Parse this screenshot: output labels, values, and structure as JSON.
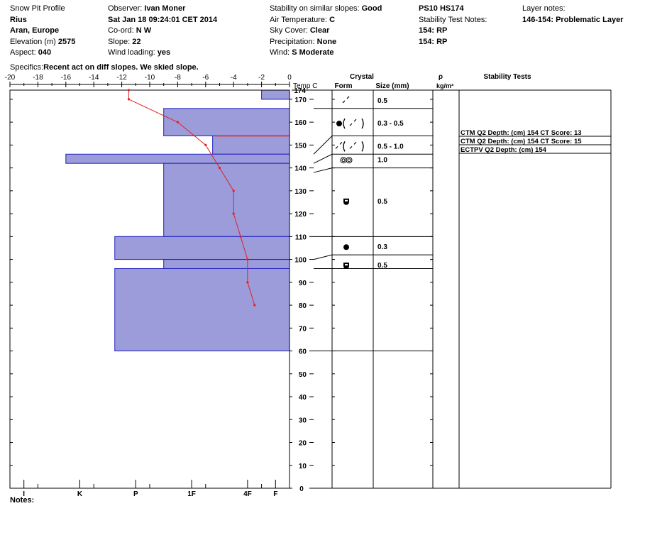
{
  "header": {
    "col1": [
      {
        "label": "Snow Pit Profile",
        "value": ""
      },
      {
        "label": "",
        "value": "Rius"
      },
      {
        "label": "",
        "value": "Aran, Europe"
      },
      {
        "label": "Elevation (m) ",
        "value": "2575"
      },
      {
        "label": "Aspect:  ",
        "value": "040"
      }
    ],
    "col2": [
      {
        "label": "Observer:  ",
        "value": "Ivan Moner"
      },
      {
        "label": "",
        "value": "Sat Jan 18 09:24:01 CET 2014"
      },
      {
        "label": "Co-ord:  ",
        "value": "N  W"
      },
      {
        "label": "Slope:  ",
        "value": "22"
      },
      {
        "label": "Wind loading:  ",
        "value": "yes"
      }
    ],
    "col3": [
      {
        "label": "Stability on similar slopes:  ",
        "value": "Good"
      },
      {
        "label": "Air Temperature:  ",
        "value": "C"
      },
      {
        "label": "Sky Cover:  ",
        "value": "Clear"
      },
      {
        "label": "Precipitation:  ",
        "value": "None"
      },
      {
        "label": "Wind:  ",
        "value": "S Moderate"
      }
    ],
    "col4": [
      {
        "label": "",
        "value": "PS10 HS174"
      },
      {
        "label": "Stability Test Notes:",
        "value": ""
      },
      {
        "label": "",
        "value": "154: RP"
      },
      {
        "label": "",
        "value": "154: RP"
      }
    ],
    "col5": [
      {
        "label": "Layer notes:",
        "value": ""
      },
      {
        "label": "",
        "value": "146-154: Problematic Layer"
      }
    ],
    "specifics_label": "Specifics:",
    "specifics_value": "Recent act on diff slopes. We skied slope."
  },
  "column_headers": {
    "temp": "Temp C",
    "crystal": "Crystal",
    "form": "Form",
    "size": "Size (mm)",
    "rho": "ρ",
    "rho_unit": "kg/m³",
    "stability": "Stability Tests"
  },
  "notes_label": "Notes:",
  "chart_data": {
    "type": "snow-profile",
    "colors": {
      "hardness_fill": "#9c9cdb",
      "hardness_edge": "#2020c0",
      "temp_line": "#e02020",
      "problem_line": "#e02020"
    },
    "temp_axis": {
      "min": -20,
      "max": 0,
      "ticks": [
        -20,
        -18,
        -16,
        -14,
        -12,
        -10,
        -8,
        -6,
        -4,
        -2,
        0
      ]
    },
    "hardness_axis": {
      "labels": [
        "I",
        "K",
        "P",
        "1F",
        "4F",
        "F"
      ],
      "label_temps": [
        -19,
        -15,
        -11,
        -7,
        -3,
        -1
      ]
    },
    "height_axis": {
      "min": 0,
      "max": 174,
      "ticks": [
        0,
        10,
        20,
        30,
        40,
        50,
        60,
        70,
        80,
        90,
        100,
        110,
        120,
        130,
        140,
        150,
        160,
        170
      ],
      "top_label": "174"
    },
    "hardness_layers": [
      {
        "bottom": 170,
        "top": 174,
        "hardness_temp": -2
      },
      {
        "bottom": 154,
        "top": 166,
        "hardness_temp": -9
      },
      {
        "bottom": 146,
        "top": 154,
        "hardness_temp": -5.5
      },
      {
        "bottom": 142,
        "top": 146,
        "hardness_temp": -16
      },
      {
        "bottom": 110,
        "top": 142,
        "hardness_temp": -9
      },
      {
        "bottom": 100,
        "top": 110,
        "hardness_temp": -12.5
      },
      {
        "bottom": 96,
        "top": 100,
        "hardness_temp": -9
      },
      {
        "bottom": 60,
        "top": 96,
        "hardness_temp": -12.5
      }
    ],
    "problem_layer_height": 154,
    "temperature_profile": [
      {
        "height": 174,
        "temp": -11.5
      },
      {
        "height": 170,
        "temp": -11.5
      },
      {
        "height": 160,
        "temp": -8
      },
      {
        "height": 150,
        "temp": -6
      },
      {
        "height": 140,
        "temp": -5
      },
      {
        "height": 130,
        "temp": -4
      },
      {
        "height": 120,
        "temp": -4
      },
      {
        "height": 110,
        "temp": -3.5
      },
      {
        "height": 100,
        "temp": -3
      },
      {
        "height": 90,
        "temp": -3
      },
      {
        "height": 80,
        "temp": -2.5
      }
    ],
    "layer_boundaries": [
      {
        "left": 166,
        "right": 166
      },
      {
        "left": 146,
        "right": 154
      },
      {
        "left": 142,
        "right": 146
      },
      {
        "left": 138,
        "right": 140
      },
      {
        "left": 110,
        "right": 110
      },
      {
        "left": 100,
        "right": 102
      },
      {
        "left": 96,
        "right": 96
      },
      {
        "left": 60,
        "right": 60
      }
    ],
    "crystal_rows": [
      {
        "height": 170,
        "form": "decomposing",
        "size": "0.5"
      },
      {
        "height": 160,
        "form": "rounded (decomposing)",
        "size": "0.3 - 0.5"
      },
      {
        "height": 150,
        "form": "decomposing (decomposing)",
        "size": "0.5 - 1.0"
      },
      {
        "height": 144,
        "form": "melt forms",
        "size": "1.0"
      },
      {
        "height": 126,
        "form": "faceted rounded",
        "size": "0.5"
      },
      {
        "height": 106,
        "form": "rounded",
        "size": "0.3"
      },
      {
        "height": 98,
        "form": "faceted rounded",
        "size": "0.5"
      }
    ],
    "stability_tests": [
      {
        "text": "CTM Q2 Depth: (cm) 154 CT Score: 13"
      },
      {
        "text": "CTM Q2 Depth: (cm) 154 CT Score: 15"
      },
      {
        "text": "ECTPV Q2 Depth: (cm) 154"
      }
    ]
  }
}
